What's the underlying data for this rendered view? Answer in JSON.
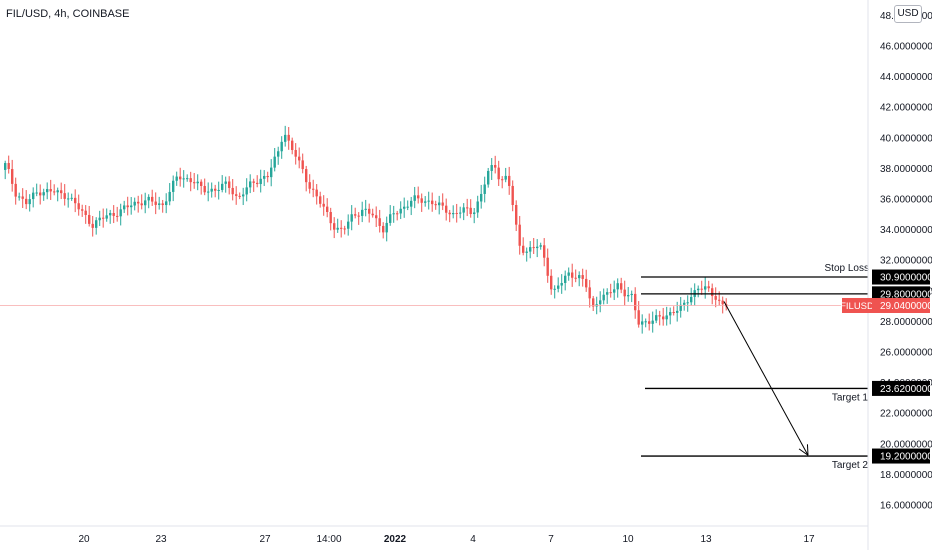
{
  "header": {
    "symbol_title": "FIL/USD, 4h, COINBASE",
    "currency": "USD"
  },
  "colors": {
    "up": "#26a69a",
    "down": "#ef5350",
    "price_line": "#f7a8a8",
    "price_label_bg": "#ef5350",
    "level_label_bg": "#000000",
    "axis_text": "#131722"
  },
  "chart_data": {
    "type": "candlestick",
    "ylim": [
      15,
      48.5
    ],
    "xlim": [
      0,
      932
    ],
    "y_ticks": [
      "16.00000000",
      "18.00000000",
      "20.00000000",
      "22.00000000",
      "24.00000000",
      "26.00000000",
      "28.00000000",
      "30.00000000",
      "32.00000000",
      "34.00000000",
      "36.00000000",
      "38.00000000",
      "40.00000000",
      "42.00000000",
      "44.00000000",
      "46.00000000",
      "48.00000000"
    ],
    "x_ticks": [
      {
        "label": "20",
        "bold": false
      },
      {
        "label": "23",
        "bold": false
      },
      {
        "label": "27",
        "bold": false
      },
      {
        "label": "14:00",
        "bold": false
      },
      {
        "label": "2022",
        "bold": true
      },
      {
        "label": "4",
        "bold": false
      },
      {
        "label": "7",
        "bold": false
      },
      {
        "label": "10",
        "bold": false
      },
      {
        "label": "13",
        "bold": false
      },
      {
        "label": "17",
        "bold": false
      }
    ],
    "anchors": [
      [
        0,
        37.5
      ],
      [
        8,
        38.3
      ],
      [
        18,
        36.4
      ],
      [
        28,
        35.7
      ],
      [
        40,
        36.5
      ],
      [
        55,
        36.5
      ],
      [
        70,
        36.2
      ],
      [
        85,
        35.1
      ],
      [
        95,
        34.3
      ],
      [
        108,
        34.9
      ],
      [
        120,
        35.1
      ],
      [
        135,
        35.7
      ],
      [
        150,
        35.9
      ],
      [
        165,
        35.6
      ],
      [
        180,
        37.5
      ],
      [
        195,
        37.2
      ],
      [
        205,
        36.6
      ],
      [
        218,
        36.6
      ],
      [
        230,
        37.0
      ],
      [
        240,
        36.0
      ],
      [
        255,
        37.1
      ],
      [
        270,
        37.5
      ],
      [
        280,
        39.0
      ],
      [
        286,
        40.5
      ],
      [
        292,
        39.5
      ],
      [
        298,
        38.8
      ],
      [
        305,
        37.9
      ],
      [
        312,
        36.8
      ],
      [
        320,
        36.0
      ],
      [
        330,
        35.0
      ],
      [
        338,
        34.0
      ],
      [
        345,
        33.9
      ],
      [
        355,
        35.0
      ],
      [
        365,
        35.2
      ],
      [
        375,
        35.0
      ],
      [
        385,
        34.0
      ],
      [
        395,
        35.0
      ],
      [
        405,
        35.4
      ],
      [
        415,
        36.0
      ],
      [
        425,
        35.9
      ],
      [
        435,
        35.8
      ],
      [
        445,
        35.4
      ],
      [
        455,
        35.0
      ],
      [
        465,
        35.3
      ],
      [
        475,
        35.1
      ],
      [
        483,
        36.2
      ],
      [
        490,
        37.7
      ],
      [
        497,
        38.2
      ],
      [
        503,
        37.2
      ],
      [
        510,
        37.5
      ],
      [
        516,
        35.2
      ],
      [
        521,
        33.0
      ],
      [
        528,
        32.6
      ],
      [
        536,
        32.8
      ],
      [
        542,
        33.0
      ],
      [
        548,
        31.8
      ],
      [
        555,
        29.8
      ],
      [
        562,
        30.4
      ],
      [
        570,
        31.1
      ],
      [
        580,
        31.0
      ],
      [
        588,
        30.4
      ],
      [
        595,
        28.8
      ],
      [
        602,
        29.6
      ],
      [
        610,
        29.7
      ],
      [
        620,
        30.4
      ],
      [
        628,
        29.8
      ],
      [
        635,
        29.5
      ],
      [
        640,
        27.9
      ],
      [
        648,
        28.0
      ],
      [
        656,
        28.1
      ],
      [
        666,
        28.3
      ],
      [
        676,
        28.7
      ],
      [
        685,
        28.9
      ],
      [
        692,
        29.6
      ],
      [
        700,
        30.2
      ],
      [
        706,
        30.2
      ],
      [
        712,
        29.9
      ],
      [
        718,
        29.6
      ],
      [
        724,
        29.1
      ]
    ],
    "levels": [
      {
        "name": "stop-loss",
        "label": "Stop Loss",
        "value": 30.9,
        "value_label": "30.90000000",
        "x0": 641
      },
      {
        "name": "entry",
        "label": "",
        "value": 29.8,
        "value_label": "29.80000000",
        "x0": 641
      },
      {
        "name": "target-1",
        "label": "Target 1",
        "value": 23.62,
        "value_label": "23.62000000",
        "x0": 645
      },
      {
        "name": "target-2",
        "label": "Target 2",
        "value": 19.2,
        "value_label": "19.20000000",
        "x0": 641
      }
    ],
    "last_price": {
      "symbol": "FILUSD",
      "value": 29.04,
      "value_label": "29.04000000"
    },
    "projection": {
      "from": [
        724,
        29.3
      ],
      "to": [
        808,
        19.25
      ]
    }
  }
}
